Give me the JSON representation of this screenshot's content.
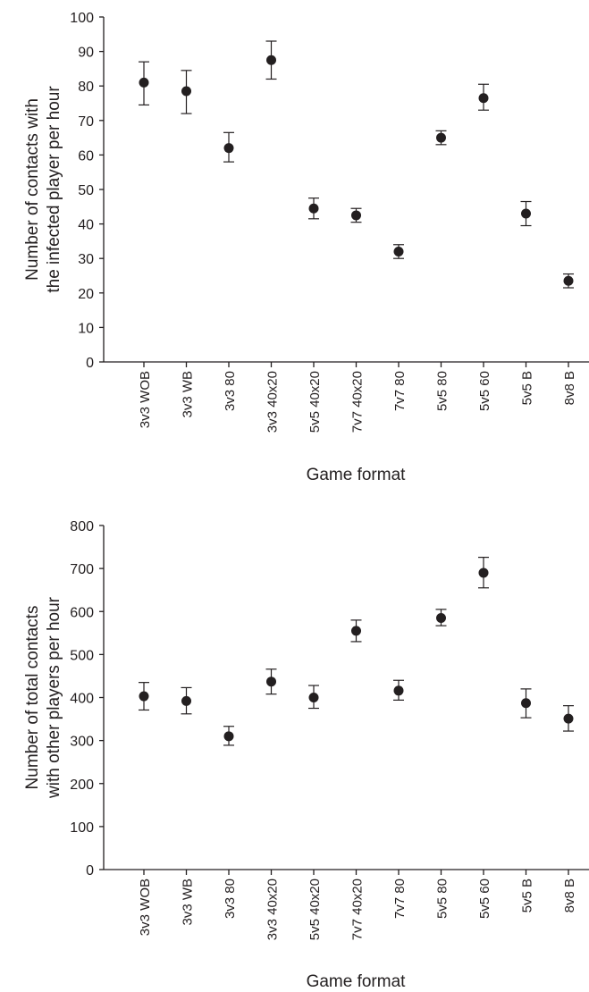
{
  "chart_data": [
    {
      "type": "scatter",
      "categories": [
        "3v3 WOB",
        "3v3 WB",
        "3v3 80",
        "3v3 40x20",
        "5v5 40x20",
        "7v7 40x20",
        "7v7 80",
        "5v5 80",
        "5v5 60",
        "5v5 B",
        "8v8 B"
      ],
      "values": [
        81,
        78.5,
        62,
        87.5,
        44.5,
        42.5,
        32,
        65,
        76.5,
        43,
        23.5
      ],
      "error_low": [
        74.5,
        72,
        58,
        82,
        41.5,
        40.5,
        30,
        63,
        73,
        39.5,
        21.5
      ],
      "error_high": [
        87,
        84.5,
        66.5,
        93,
        47.5,
        44.5,
        34,
        67,
        80.5,
        46.5,
        25.5
      ],
      "ylabel_lines": [
        "Number of contacts with",
        "the infected player per hour"
      ],
      "xlabel": "Game format",
      "ylim": [
        0,
        100
      ],
      "yticks": [
        "0",
        "10",
        "20",
        "30",
        "40",
        "50",
        "60",
        "70",
        "80",
        "90",
        "100"
      ],
      "grid": false
    },
    {
      "type": "scatter",
      "categories": [
        "3v3 WOB",
        "3v3 WB",
        "3v3 80",
        "3v3 40x20",
        "5v5 40x20",
        "7v7 40x20",
        "7v7 80",
        "5v5 80",
        "5v5 60",
        "5v5 B",
        "8v8 B"
      ],
      "values": [
        403,
        392,
        310,
        437,
        400,
        555,
        416,
        585,
        690,
        387,
        351
      ],
      "error_low": [
        371,
        362,
        289,
        408,
        375,
        530,
        394,
        567,
        655,
        353,
        322
      ],
      "error_high": [
        435,
        423,
        333,
        466,
        428,
        580,
        440,
        605,
        726,
        420,
        381
      ],
      "ylabel_lines": [
        "Number of total contacts",
        "with other players per hour"
      ],
      "xlabel": "Game format",
      "ylim": [
        0,
        800
      ],
      "yticks": [
        "0",
        "100",
        "200",
        "300",
        "400",
        "500",
        "600",
        "700",
        "800"
      ],
      "grid": false
    }
  ]
}
